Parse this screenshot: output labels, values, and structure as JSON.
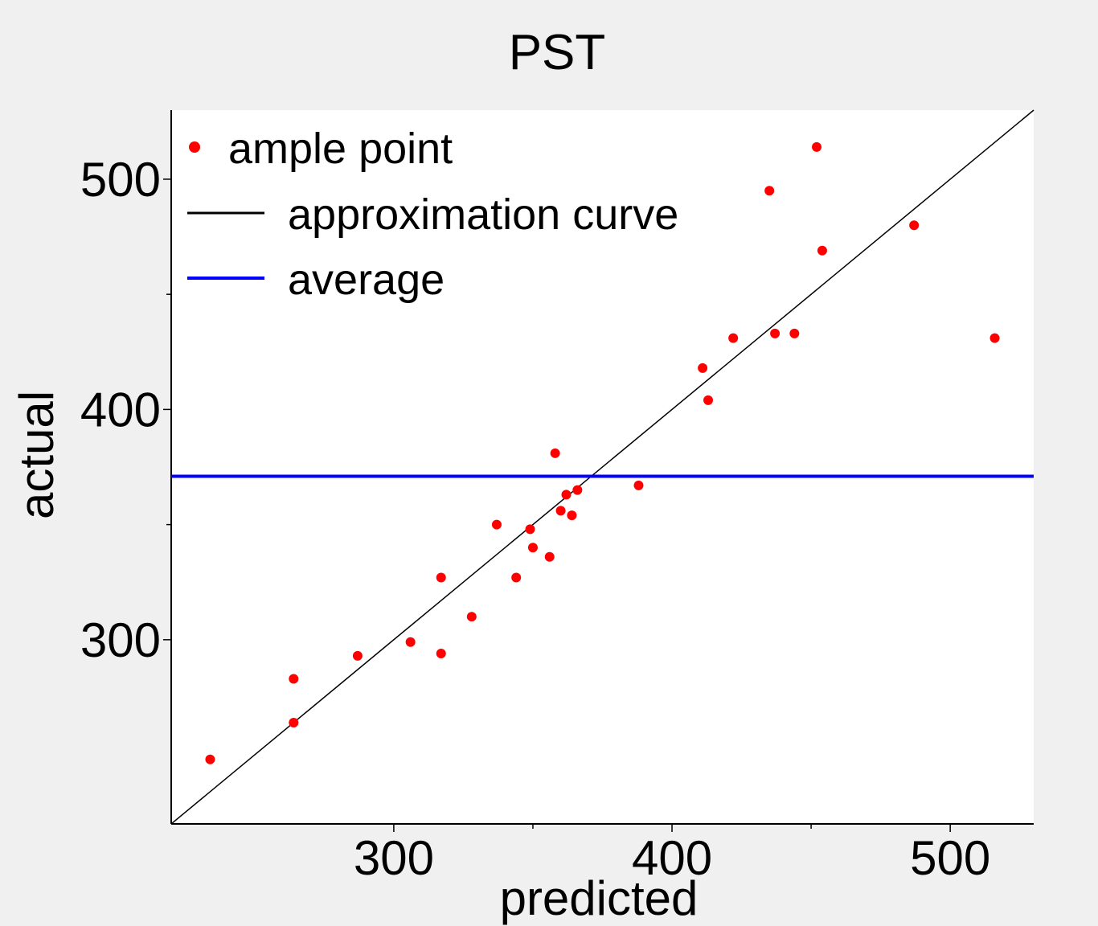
{
  "chart_data": {
    "type": "scatter",
    "title": "PST",
    "xlabel": "predicted",
    "ylabel": "actual",
    "xlim": [
      220,
      530
    ],
    "ylim": [
      220,
      530
    ],
    "x_ticks": [
      300,
      400,
      500
    ],
    "y_ticks": [
      300,
      400,
      500
    ],
    "x_minor_ticks": [
      350,
      450
    ],
    "y_minor_ticks": [
      350,
      450
    ],
    "grid": false,
    "legend_position": "top-left",
    "legend": [
      {
        "label": "ample point",
        "kind": "point",
        "color": "#ff0000"
      },
      {
        "label": "approximation curve",
        "kind": "line",
        "color": "#000000"
      },
      {
        "label": "average",
        "kind": "line",
        "color": "#0000ff"
      }
    ],
    "series": [
      {
        "name": "ample point",
        "type": "scatter",
        "color": "#ff0000",
        "points": [
          [
            234,
            248
          ],
          [
            264,
            283
          ],
          [
            264,
            264
          ],
          [
            287,
            293
          ],
          [
            306,
            299
          ],
          [
            317,
            294
          ],
          [
            317,
            327
          ],
          [
            328,
            310
          ],
          [
            337,
            350
          ],
          [
            344,
            327
          ],
          [
            349,
            348
          ],
          [
            350,
            340
          ],
          [
            356,
            336
          ],
          [
            358,
            381
          ],
          [
            360,
            356
          ],
          [
            362,
            363
          ],
          [
            364,
            354
          ],
          [
            366,
            365
          ],
          [
            388,
            367
          ],
          [
            411,
            418
          ],
          [
            413,
            404
          ],
          [
            422,
            431
          ],
          [
            435,
            495
          ],
          [
            437,
            433
          ],
          [
            444,
            433
          ],
          [
            452,
            514
          ],
          [
            454,
            469
          ],
          [
            487,
            480
          ],
          [
            516,
            431
          ]
        ]
      },
      {
        "name": "approximation curve",
        "type": "line",
        "color": "#000000",
        "points": [
          [
            220,
            220
          ],
          [
            530,
            530
          ]
        ]
      },
      {
        "name": "average",
        "type": "hline",
        "color": "#0000ff",
        "y": 371
      }
    ]
  }
}
